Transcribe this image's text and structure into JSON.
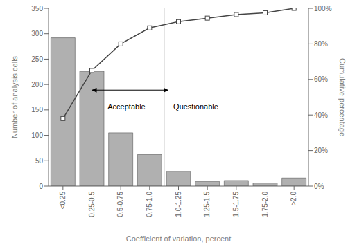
{
  "chart_data": {
    "type": "bar",
    "categories": [
      "<0.25",
      "0.25-0.5",
      "0.5-0.75",
      "0.75-1.0",
      "1.0-1.25",
      "1.25-1.5",
      "1.5-1.75",
      "1.75-2.0",
      ">2.0"
    ],
    "series": [
      {
        "type": "bar",
        "color": "#b0b0b0",
        "values": [
          292,
          226,
          105,
          62,
          29,
          9,
          11,
          6,
          16
        ]
      },
      {
        "type": "line",
        "color": "#444444",
        "marker": "square",
        "axis": "y2",
        "values": [
          38.0,
          65.0,
          80.0,
          89.0,
          92.5,
          94.5,
          96.5,
          97.5,
          100.0
        ]
      }
    ],
    "xlabel": "Coefficient of variation, percent",
    "ylabel": "Number of analysis cells",
    "y2label": "Cumulative percentage",
    "ylim": [
      0,
      350
    ],
    "yticks": [
      0,
      50,
      100,
      150,
      200,
      250,
      300,
      350
    ],
    "y2lim": [
      0,
      100
    ],
    "y2ticks": [
      {
        "value": 0,
        "label": "0%"
      },
      {
        "value": 20,
        "label": "20%"
      },
      {
        "value": 40,
        "label": "40%"
      },
      {
        "value": 60,
        "label": "60%"
      },
      {
        "value": 80,
        "label": "80%"
      },
      {
        "value": 100,
        "label": "100%"
      }
    ],
    "annotations": [
      "Acceptable",
      "Questionable"
    ],
    "grid": false
  }
}
